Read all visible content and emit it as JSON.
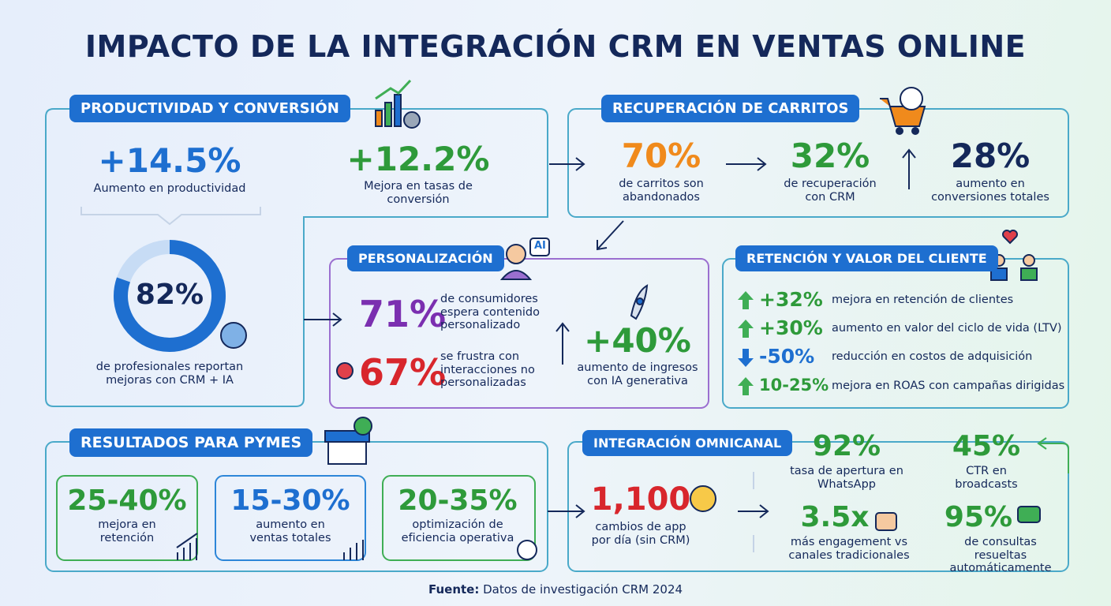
{
  "title": "IMPACTO DE LA INTEGRACIÓN CRM EN VENTAS ONLINE",
  "productividad": {
    "heading": "PRODUCTIVIDAD Y CONVERSIÓN",
    "stats": [
      {
        "value": "+14.5%",
        "label": "Aumento en productividad"
      },
      {
        "value": "+12.2%",
        "label": "Mejora en tasas de conversión"
      }
    ],
    "ring": {
      "value": "82%",
      "label": "de profesionales reportan mejoras con CRM + IA"
    }
  },
  "recuperacion": {
    "heading": "RECUPERACIÓN DE CARRITOS",
    "stats": [
      {
        "value": "70%",
        "label": "de carritos son abandonados"
      },
      {
        "value": "32%",
        "label": "de recuperación con CRM"
      },
      {
        "value": "28%",
        "label": "aumento en conversiones totales"
      }
    ]
  },
  "personalizacion": {
    "heading": "PERSONALIZACIÓN",
    "icon_label": "AI",
    "stats": [
      {
        "value": "71%",
        "label": "de consumidores espera contenido personalizado"
      },
      {
        "value": "67%",
        "label": "se frustra con interacciones no personalizadas"
      },
      {
        "value": "+40%",
        "label": "aumento de ingresos con IA generativa"
      }
    ]
  },
  "retencion": {
    "heading": "RETENCIÓN Y VALOR DEL CLIENTE",
    "rows": [
      {
        "value": "+32%",
        "label": "mejora en retención de clientes"
      },
      {
        "value": "+30%",
        "label": "aumento en valor del ciclo de vida (LTV)"
      },
      {
        "value": "-50%",
        "label": "reducción en costos de adquisición"
      },
      {
        "value": "10-25%",
        "label": "mejora en ROAS con campañas dirigidas"
      }
    ]
  },
  "pymes": {
    "heading": "RESULTADOS PARA PYMES",
    "cards": [
      {
        "value": "25-40%",
        "label": "mejora en retención"
      },
      {
        "value": "15-30%",
        "label": "aumento en ventas totales"
      },
      {
        "value": "20-35%",
        "label": "optimización de eficiencia operativa"
      }
    ]
  },
  "omnicanal": {
    "heading": "INTEGRACIÓN OMNICANAL",
    "stats": [
      {
        "value": "1,100",
        "label": "cambios de app por día (sin CRM)"
      },
      {
        "value": "92%",
        "label": "tasa de apertura en WhatsApp"
      },
      {
        "value": "45%",
        "label": "CTR en broadcasts"
      },
      {
        "value": "3.5x",
        "label": "más engagement vs canales tradicionales"
      },
      {
        "value": "95%",
        "label": "de consultas resueltas automáticamente"
      }
    ]
  },
  "footer": {
    "source_label": "Fuente:",
    "source_text": "Datos de investigación CRM 2024"
  }
}
